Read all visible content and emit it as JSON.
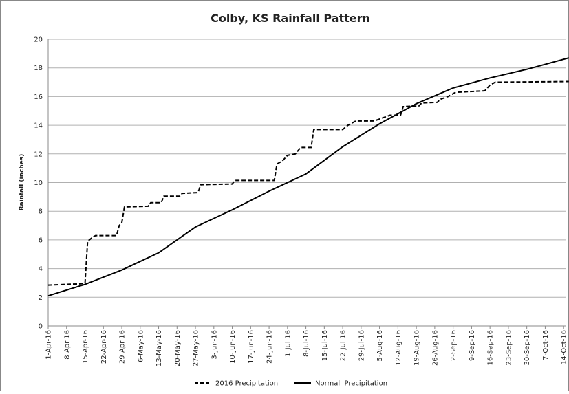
{
  "chart_data": {
    "type": "line",
    "title": "Colby, KS Rainfall Pattern",
    "y_label": "Rainfall (inches)",
    "xlim": [
      "1-Apr-16",
      "15-Oct-16"
    ],
    "xticks": [
      "1-Apr-16",
      "8-Apr-16",
      "15-Apr-16",
      "22-Apr-16",
      "29-Apr-16",
      "6-May-16",
      "13-May-16",
      "20-May-16",
      "27-May-16",
      "3-Jun-16",
      "10-Jun-16",
      "17-Jun-16",
      "24-Jun-16",
      "1-Jul-16",
      "8-Jul-16",
      "15-Jul-16",
      "22-Jul-16",
      "29-Jul-16",
      "5-Aug-16",
      "12-Aug-16",
      "19-Aug-16",
      "26-Aug-16",
      "2-Sep-16",
      "9-Sep-16",
      "16-Sep-16",
      "23-Sep-16",
      "30-Sep-16",
      "7-Oct-16",
      "14-Oct-16"
    ],
    "ylim": [
      0,
      20
    ],
    "yticks": [
      0,
      2,
      4,
      6,
      8,
      10,
      12,
      14,
      16,
      18,
      20
    ],
    "grid": true,
    "legend": "bottom",
    "series": [
      {
        "name": "2016 Precipitation",
        "color": "#000000",
        "dash": true,
        "x": [
          "1-Apr-16",
          "8-Apr-16",
          "15-Apr-16",
          "16-Apr-16",
          "18-Apr-16",
          "19-Apr-16",
          "27-Apr-16",
          "28-Apr-16",
          "29-Apr-16",
          "30-Apr-16",
          "9-May-16",
          "10-May-16",
          "14-May-16",
          "15-May-16",
          "21-May-16",
          "22-May-16",
          "28-May-16",
          "29-May-16",
          "10-Jun-16",
          "11-Jun-16",
          "26-Jun-16",
          "27-Jun-16",
          "29-Jun-16",
          "1-Jul-16",
          "4-Jul-16",
          "6-Jul-16",
          "10-Jul-16",
          "11-Jul-16",
          "22-Jul-16",
          "24-Jul-16",
          "27-Jul-16",
          "3-Aug-16",
          "6-Aug-16",
          "9-Aug-16",
          "13-Aug-16",
          "14-Aug-16",
          "20-Aug-16",
          "21-Aug-16",
          "27-Aug-16",
          "28-Aug-16",
          "31-Aug-16",
          "3-Sep-16",
          "14-Sep-16",
          "16-Sep-16",
          "18-Sep-16",
          "16-Oct-16"
        ],
        "values": [
          2.85,
          2.9,
          2.95,
          5.9,
          6.2,
          6.3,
          6.3,
          7.0,
          7.2,
          8.3,
          8.35,
          8.6,
          8.6,
          9.05,
          9.05,
          9.25,
          9.3,
          9.85,
          9.9,
          10.15,
          10.15,
          11.3,
          11.5,
          11.9,
          12.0,
          12.45,
          12.45,
          13.7,
          13.7,
          14.0,
          14.3,
          14.3,
          14.5,
          14.7,
          14.7,
          15.3,
          15.35,
          15.55,
          15.6,
          15.8,
          16.0,
          16.3,
          16.4,
          16.8,
          17.0,
          17.05
        ]
      },
      {
        "name": "Normal  Precipitation",
        "color": "#000000",
        "dash": false,
        "x": [
          "1-Apr-16",
          "15-Apr-16",
          "29-Apr-16",
          "13-May-16",
          "27-May-16",
          "10-Jun-16",
          "24-Jun-16",
          "8-Jul-16",
          "22-Jul-16",
          "5-Aug-16",
          "19-Aug-16",
          "2-Sep-16",
          "16-Sep-16",
          "30-Sep-16",
          "14-Oct-16",
          "16-Oct-16"
        ],
        "values": [
          2.1,
          2.9,
          3.9,
          5.1,
          6.9,
          8.1,
          9.4,
          10.6,
          12.5,
          14.1,
          15.5,
          16.6,
          17.3,
          17.9,
          18.6,
          18.7
        ]
      }
    ]
  }
}
